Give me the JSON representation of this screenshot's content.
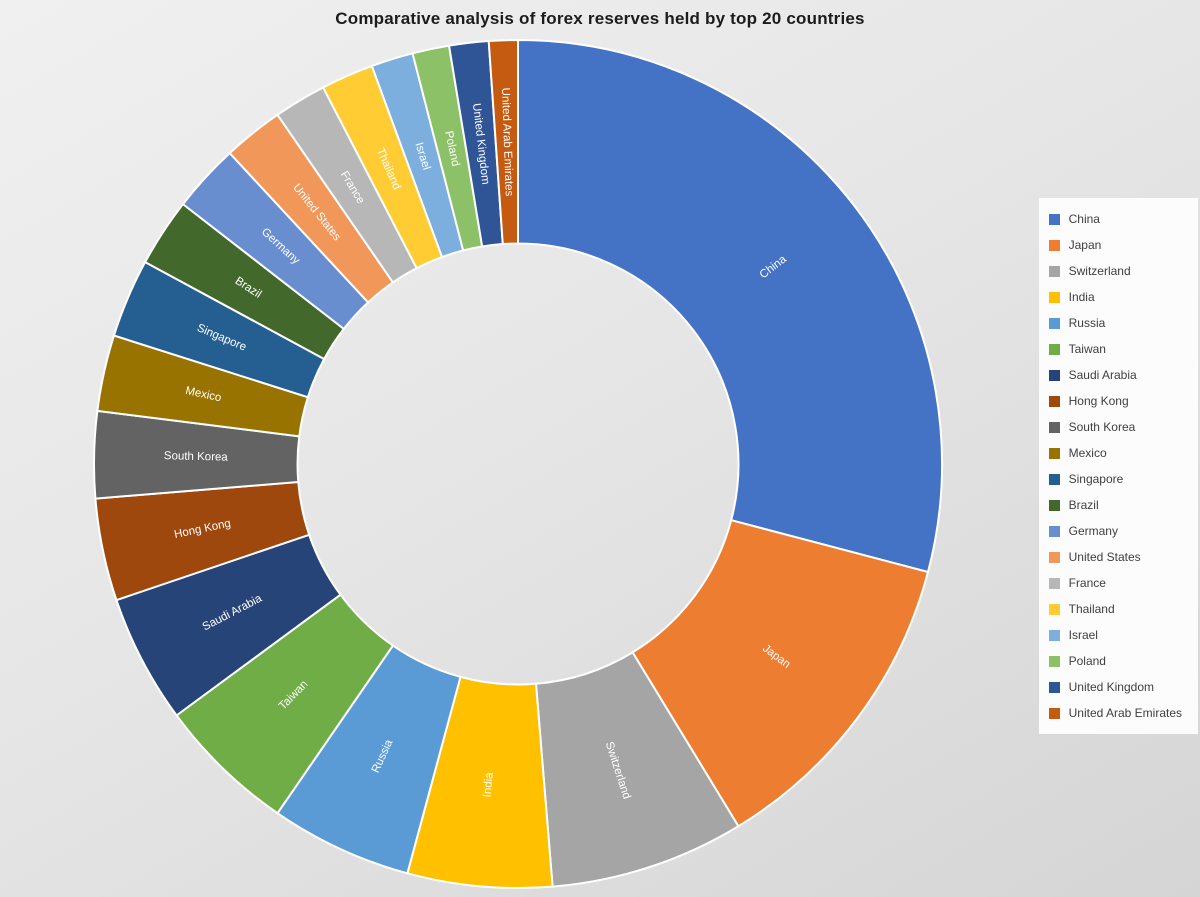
{
  "chart_data": {
    "type": "pie",
    "subtype": "donut",
    "title": "Comparative analysis of forex reserves held by top 20 countries",
    "legend_position": "right",
    "direction": "clockwise",
    "start_angle_deg": 0,
    "inner_radius_ratio": 0.52,
    "value_unit": "percent_of_total_estimated_from_arc_angles",
    "categories": [
      "China",
      "Japan",
      "Switzerland",
      "India",
      "Russia",
      "Taiwan",
      "Saudi Arabia",
      "Hong Kong",
      "South Korea",
      "Mexico",
      "Singapore",
      "Brazil",
      "Germany",
      "United States",
      "France",
      "Thailand",
      "Israel",
      "Poland",
      "United Kingdom",
      "United Arab Emirates"
    ],
    "values": [
      29.1,
      12.2,
      7.4,
      5.5,
      5.4,
      5.3,
      4.9,
      3.9,
      3.3,
      2.9,
      3.0,
      2.6,
      2.6,
      2.3,
      2.0,
      2.0,
      1.6,
      1.4,
      1.5,
      1.1
    ],
    "colors": [
      "#4472C4",
      "#ED7D31",
      "#A5A5A5",
      "#FFC000",
      "#5B9BD5",
      "#70AD47",
      "#264478",
      "#9E480E",
      "#636363",
      "#997300",
      "#255E91",
      "#43682B",
      "#698ED0",
      "#F1975A",
      "#B7B7B7",
      "#FFCD33",
      "#7CAFDD",
      "#8CC168",
      "#2F5597",
      "#C55A11"
    ],
    "slice_label_color": "#FFFFFF",
    "title_color": "#1C1C1C",
    "legend_text_color": "#3F3F3F",
    "background_color_top": "#F0F0F0",
    "background_color_bottom": "#D5D5D5"
  }
}
